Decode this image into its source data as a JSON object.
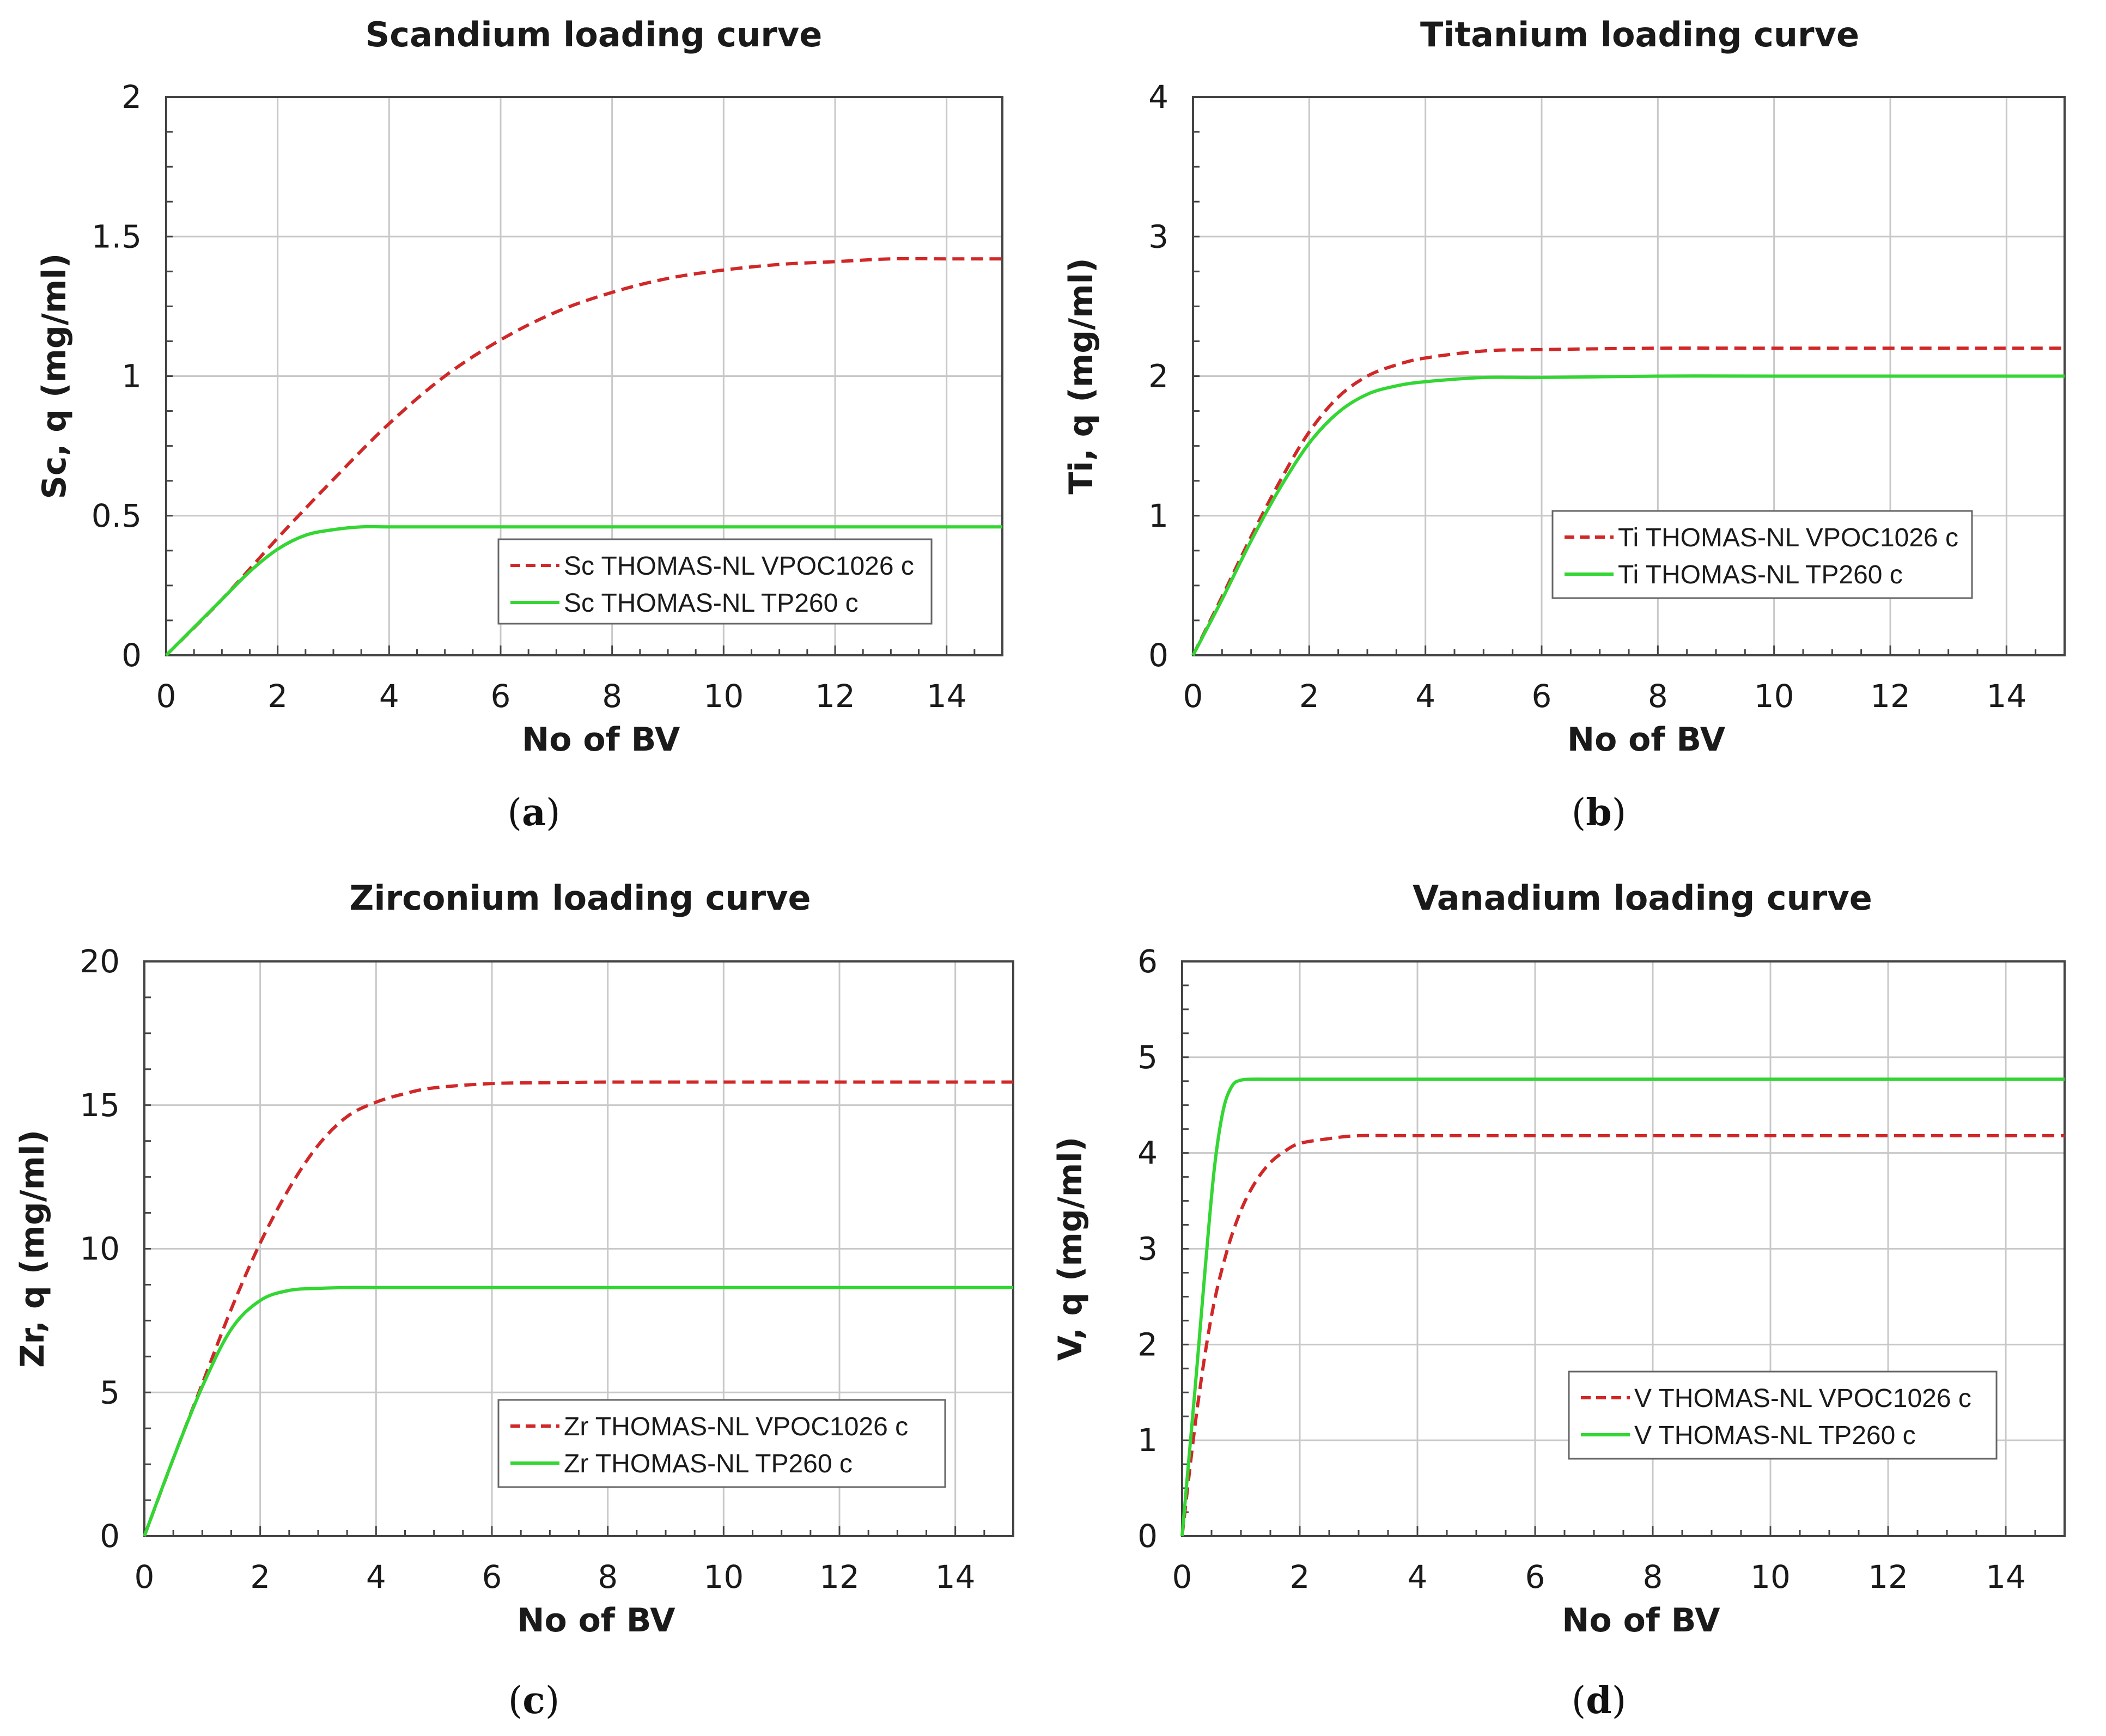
{
  "figure": {
    "captions": [
      {
        "label": "a",
        "paren_open": "(",
        "paren_close": ")"
      },
      {
        "label": "b",
        "paren_open": "(",
        "paren_close": ")"
      },
      {
        "label": "c",
        "paren_open": "(",
        "paren_close": ")"
      },
      {
        "label": "d",
        "paren_open": "(",
        "paren_close": ")"
      }
    ]
  },
  "colors": {
    "dashed_series": "#d02828",
    "solid_series": "#33d633",
    "grid": "#c8c8c8",
    "axis": "#444444"
  },
  "chart_data": [
    {
      "type": "line",
      "title": "Scandium loading curve",
      "xlabel": "No of BV",
      "ylabel": "Sc, q (mg/ml)",
      "xlim": [
        0,
        15
      ],
      "ylim": [
        0,
        2
      ],
      "xticks": [
        0,
        2,
        4,
        6,
        8,
        10,
        12,
        14
      ],
      "yticks": [
        0,
        0.5,
        1,
        1.5,
        2
      ],
      "ytick_labels": [
        "0",
        "0.5",
        "1",
        "1.5",
        "2"
      ],
      "grid": true,
      "legend_position": "lower-right",
      "series": [
        {
          "name": "Sc THOMAS-NL VPOC1026 c",
          "style": "dashed",
          "x": [
            0,
            1,
            2,
            3,
            4,
            5,
            6,
            7,
            8,
            9,
            10,
            11,
            12,
            13,
            14,
            15
          ],
          "y": [
            0,
            0.2,
            0.42,
            0.63,
            0.83,
            1.0,
            1.13,
            1.23,
            1.3,
            1.35,
            1.38,
            1.4,
            1.41,
            1.42,
            1.42,
            1.42
          ]
        },
        {
          "name": "Sc THOMAS-NL TP260 c",
          "style": "solid",
          "x": [
            0,
            0.5,
            1,
            1.5,
            2,
            2.5,
            3,
            3.5,
            4,
            5,
            6,
            8,
            10,
            12,
            15
          ],
          "y": [
            0,
            0.1,
            0.2,
            0.3,
            0.38,
            0.43,
            0.45,
            0.46,
            0.46,
            0.46,
            0.46,
            0.46,
            0.46,
            0.46,
            0.46
          ]
        }
      ]
    },
    {
      "type": "line",
      "title": "Titanium loading curve",
      "xlabel": "No of BV",
      "ylabel": "Ti, q (mg/ml)",
      "xlim": [
        0,
        15
      ],
      "ylim": [
        0,
        4
      ],
      "xticks": [
        0,
        2,
        4,
        6,
        8,
        10,
        12,
        14
      ],
      "yticks": [
        0,
        1,
        2,
        3,
        4
      ],
      "ytick_labels": [
        "0",
        "1",
        "2",
        "3",
        "4"
      ],
      "grid": true,
      "legend_position": "lower-right",
      "series": [
        {
          "name": "Ti THOMAS-NL VPOC1026 c",
          "style": "dashed",
          "x": [
            0,
            0.5,
            1,
            1.5,
            2,
            2.5,
            3,
            3.5,
            4,
            5,
            6,
            8,
            10,
            12,
            15
          ],
          "y": [
            0,
            0.42,
            0.85,
            1.25,
            1.6,
            1.85,
            2.0,
            2.08,
            2.13,
            2.18,
            2.19,
            2.2,
            2.2,
            2.2,
            2.2
          ]
        },
        {
          "name": "Ti THOMAS-NL TP260 c",
          "style": "solid",
          "x": [
            0,
            0.5,
            1,
            1.5,
            2,
            2.5,
            3,
            3.5,
            4,
            5,
            6,
            8,
            10,
            12,
            15
          ],
          "y": [
            0,
            0.4,
            0.82,
            1.2,
            1.52,
            1.74,
            1.87,
            1.93,
            1.96,
            1.99,
            1.99,
            2.0,
            2.0,
            2.0,
            2.0
          ]
        }
      ]
    },
    {
      "type": "line",
      "title": "Zirconium loading curve",
      "xlabel": "No of BV",
      "ylabel": "Zr, q (mg/ml)",
      "xlim": [
        0,
        15
      ],
      "ylim": [
        0,
        20
      ],
      "xticks": [
        0,
        2,
        4,
        6,
        8,
        10,
        12,
        14
      ],
      "yticks": [
        0,
        5,
        10,
        15,
        20
      ],
      "ytick_labels": [
        "0",
        "5",
        "10",
        "15",
        "20"
      ],
      "grid": true,
      "legend_position": "lower-right",
      "series": [
        {
          "name": "Zr THOMAS-NL VPOC1026 c",
          "style": "dashed",
          "x": [
            0,
            0.5,
            1,
            1.5,
            2,
            2.5,
            3,
            3.5,
            4,
            4.5,
            5,
            6,
            7,
            8,
            10,
            12,
            15
          ],
          "y": [
            0,
            2.7,
            5.3,
            7.9,
            10.2,
            12.1,
            13.6,
            14.6,
            15.1,
            15.4,
            15.6,
            15.75,
            15.78,
            15.8,
            15.8,
            15.8,
            15.8
          ]
        },
        {
          "name": "Zr THOMAS-NL TP260 c",
          "style": "solid",
          "x": [
            0,
            0.5,
            1,
            1.5,
            2,
            2.5,
            3,
            3.5,
            4,
            5,
            6,
            8,
            10,
            12,
            15
          ],
          "y": [
            0,
            2.7,
            5.2,
            7.2,
            8.2,
            8.55,
            8.62,
            8.65,
            8.65,
            8.65,
            8.65,
            8.65,
            8.65,
            8.65,
            8.65
          ]
        }
      ]
    },
    {
      "type": "line",
      "title": "Vanadium loading curve",
      "xlabel": "No of BV",
      "ylabel": "V, q (mg/ml)",
      "xlim": [
        0,
        15
      ],
      "ylim": [
        0,
        6
      ],
      "xticks": [
        0,
        2,
        4,
        6,
        8,
        10,
        12,
        14
      ],
      "yticks": [
        0,
        1,
        2,
        3,
        4,
        5,
        6
      ],
      "ytick_labels": [
        "0",
        "1",
        "2",
        "3",
        "4",
        "5",
        "6"
      ],
      "grid": true,
      "legend_position": "lower-right",
      "series": [
        {
          "name": "V THOMAS-NL VPOC1026 c",
          "style": "dashed",
          "x": [
            0,
            0.25,
            0.5,
            0.75,
            1,
            1.25,
            1.5,
            1.75,
            2,
            2.5,
            3,
            4,
            6,
            10,
            15
          ],
          "y": [
            0,
            1.3,
            2.3,
            2.95,
            3.4,
            3.7,
            3.9,
            4.02,
            4.1,
            4.15,
            4.18,
            4.18,
            4.18,
            4.18,
            4.18
          ]
        },
        {
          "name": "V THOMAS-NL TP260 c",
          "style": "solid",
          "x": [
            0,
            0.1,
            0.25,
            0.4,
            0.55,
            0.7,
            0.85,
            1,
            1.2,
            1.5,
            2,
            4,
            8,
            15
          ],
          "y": [
            0,
            0.7,
            1.75,
            2.85,
            3.85,
            4.45,
            4.7,
            4.76,
            4.77,
            4.77,
            4.77,
            4.77,
            4.77,
            4.77
          ]
        }
      ]
    }
  ]
}
